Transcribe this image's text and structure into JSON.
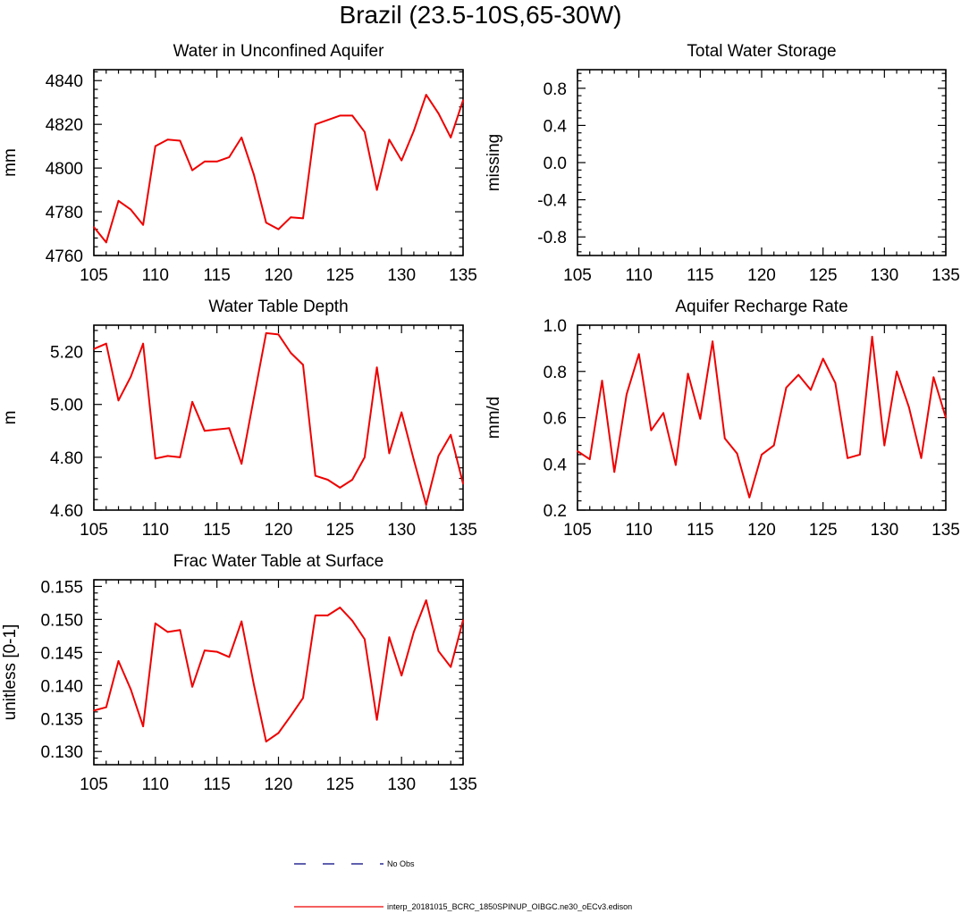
{
  "page_title": "Brazil (23.5-10S,65-30W)",
  "colors": {
    "series": "#ee0000",
    "axis": "#000000",
    "legend_obs": "#000080"
  },
  "legend": {
    "obs_label": "No Obs",
    "model_label": "interp_20181015_BCRC_1850SPINUP_OIBGC.ne30_oECv3.edison"
  },
  "chart_data": [
    {
      "id": "wa",
      "type": "line",
      "title": "Water in Unconfined Aquifer",
      "ylabel": "mm",
      "xlim": [
        105,
        135
      ],
      "ylim": [
        4760,
        4845
      ],
      "xticks": [
        105,
        110,
        115,
        120,
        125,
        130,
        135
      ],
      "xtick_labels": [
        "105",
        "110",
        "115",
        "120",
        "125",
        "130",
        "135"
      ],
      "yticks": [
        4760,
        4780,
        4800,
        4820,
        4840
      ],
      "ytick_labels": [
        "4760",
        "4780",
        "4800",
        "4820",
        "4840"
      ],
      "x": [
        105,
        106,
        107,
        108,
        109,
        110,
        111,
        112,
        113,
        114,
        115,
        116,
        117,
        118,
        119,
        120,
        121,
        122,
        123,
        124,
        125,
        126,
        127,
        128,
        129,
        130,
        131,
        132,
        133,
        134,
        135
      ],
      "y": [
        4773,
        4766,
        4785,
        4781,
        4774,
        4810,
        4813,
        4812.5,
        4799,
        4803,
        4803,
        4805,
        4814,
        4797,
        4775,
        4772,
        4777.5,
        4777,
        4820,
        4822,
        4824,
        4824,
        4816.5,
        4790,
        4813,
        4803.5,
        4817,
        4833.5,
        4825,
        4814,
        4831
      ]
    },
    {
      "id": "tws",
      "type": "line",
      "title": "Total Water Storage",
      "ylabel": "missing",
      "xlim": [
        105,
        135
      ],
      "ylim": [
        -1,
        1
      ],
      "xticks": [
        105,
        110,
        115,
        120,
        125,
        130,
        135
      ],
      "xtick_labels": [
        "105",
        "110",
        "115",
        "120",
        "125",
        "130",
        "135"
      ],
      "yticks": [
        -0.8,
        -0.4,
        0.0,
        0.4,
        0.8
      ],
      "ytick_labels": [
        "-0.8",
        "-0.4",
        "0.0",
        "0.4",
        "0.8"
      ],
      "x": [],
      "y": []
    },
    {
      "id": "wtd",
      "type": "line",
      "title": "Water Table Depth",
      "ylabel": "m",
      "xlim": [
        105,
        135
      ],
      "ylim": [
        4.6,
        5.3
      ],
      "xticks": [
        105,
        110,
        115,
        120,
        125,
        130,
        135
      ],
      "xtick_labels": [
        "105",
        "110",
        "115",
        "120",
        "125",
        "130",
        "135"
      ],
      "yticks": [
        4.6,
        4.8,
        5.0,
        5.2
      ],
      "ytick_labels": [
        "4.60",
        "4.80",
        "5.00",
        "5.20"
      ],
      "x": [
        105,
        106,
        107,
        108,
        109,
        110,
        111,
        112,
        113,
        114,
        115,
        116,
        117,
        118,
        119,
        120,
        121,
        122,
        123,
        124,
        125,
        126,
        127,
        128,
        129,
        130,
        131,
        132,
        133,
        134,
        135
      ],
      "y": [
        5.21,
        5.23,
        5.015,
        5.105,
        5.23,
        4.795,
        4.805,
        4.8,
        5.01,
        4.9,
        4.905,
        4.91,
        4.775,
        5.025,
        5.27,
        5.265,
        5.195,
        5.15,
        4.73,
        4.715,
        4.685,
        4.715,
        4.8,
        5.14,
        4.815,
        4.97,
        4.79,
        4.62,
        4.805,
        4.885,
        4.7
      ]
    },
    {
      "id": "arr",
      "type": "line",
      "title": "Aquifer Recharge Rate",
      "ylabel": "mm/d",
      "xlim": [
        105,
        135
      ],
      "ylim": [
        0.2,
        1.0
      ],
      "xticks": [
        105,
        110,
        115,
        120,
        125,
        130,
        135
      ],
      "xtick_labels": [
        "105",
        "110",
        "115",
        "120",
        "125",
        "130",
        "135"
      ],
      "yticks": [
        0.2,
        0.4,
        0.6,
        0.8,
        1.0
      ],
      "ytick_labels": [
        "0.2",
        "0.4",
        "0.6",
        "0.8",
        "1.0"
      ],
      "x": [
        105,
        106,
        107,
        108,
        109,
        110,
        111,
        112,
        113,
        114,
        115,
        116,
        117,
        118,
        119,
        120,
        121,
        122,
        123,
        124,
        125,
        126,
        127,
        128,
        129,
        130,
        131,
        132,
        133,
        134,
        135
      ],
      "y": [
        0.455,
        0.42,
        0.76,
        0.365,
        0.7,
        0.875,
        0.545,
        0.62,
        0.395,
        0.79,
        0.595,
        0.93,
        0.51,
        0.445,
        0.255,
        0.44,
        0.48,
        0.73,
        0.785,
        0.72,
        0.855,
        0.75,
        0.425,
        0.44,
        0.95,
        0.48,
        0.8,
        0.645,
        0.425,
        0.775,
        0.6
      ]
    },
    {
      "id": "frac",
      "type": "line",
      "title": "Frac Water Table at Surface",
      "ylabel": "unitless [0-1]",
      "xlim": [
        105,
        135
      ],
      "ylim": [
        0.128,
        0.156
      ],
      "xticks": [
        105,
        110,
        115,
        120,
        125,
        130,
        135
      ],
      "xtick_labels": [
        "105",
        "110",
        "115",
        "120",
        "125",
        "130",
        "135"
      ],
      "yticks": [
        0.13,
        0.135,
        0.14,
        0.145,
        0.15,
        0.155
      ],
      "ytick_labels": [
        "0.130",
        "0.135",
        "0.140",
        "0.145",
        "0.150",
        "0.155"
      ],
      "x": [
        105,
        106,
        107,
        108,
        109,
        110,
        111,
        112,
        113,
        114,
        115,
        116,
        117,
        118,
        119,
        120,
        121,
        122,
        123,
        124,
        125,
        126,
        127,
        128,
        129,
        130,
        131,
        132,
        133,
        134,
        135
      ],
      "y": [
        0.1362,
        0.1367,
        0.1437,
        0.1394,
        0.1338,
        0.1494,
        0.1481,
        0.1484,
        0.1398,
        0.1453,
        0.1451,
        0.1443,
        0.1497,
        0.1401,
        0.1315,
        0.1328,
        0.1354,
        0.1381,
        0.1506,
        0.1506,
        0.1518,
        0.1498,
        0.147,
        0.1348,
        0.1473,
        0.1415,
        0.1481,
        0.1529,
        0.1452,
        0.1428,
        0.1499
      ]
    }
  ]
}
